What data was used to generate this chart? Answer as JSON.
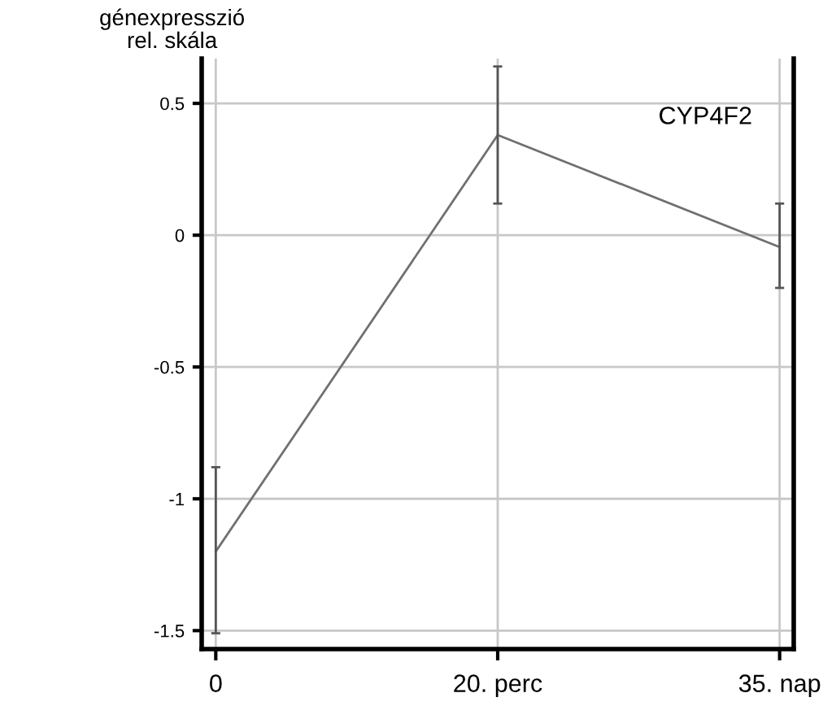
{
  "chart_data": {
    "type": "line",
    "ylabel": "génexpresszió\nrel. skála",
    "annotations": [
      "CYP4F2"
    ],
    "categories": [
      "0",
      "20. perc",
      "35. nap"
    ],
    "values": [
      -1.2,
      0.38,
      -0.045
    ],
    "errors": [
      [
        -1.51,
        -0.88
      ],
      [
        0.12,
        0.64
      ],
      [
        -0.2,
        0.12
      ]
    ],
    "color": "#707070",
    "ylim": [
      -1.57,
      0.67
    ],
    "yticks": [
      {
        "value": 0.5,
        "label": "0.5"
      },
      0,
      {
        "value": -0.5,
        "label": "-0.5"
      },
      {
        "value": -1,
        "label": "-1"
      },
      {
        "value": -1.5,
        "label": "-1.5"
      }
    ],
    "grid": true,
    "marker": "none",
    "line_style": "solid"
  }
}
